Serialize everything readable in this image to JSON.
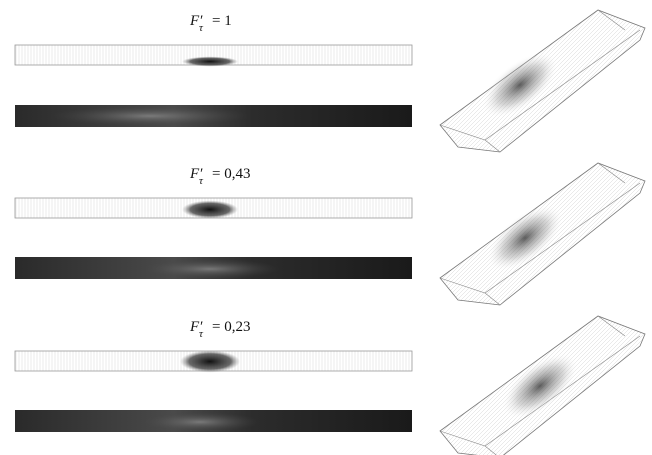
{
  "panels": [
    {
      "symbol": "F′",
      "subscript": "τ",
      "equation": "= 1"
    },
    {
      "symbol": "F′",
      "subscript": "τ",
      "equation": "= 0,43"
    },
    {
      "symbol": "F′",
      "subscript": "τ",
      "equation": "= 0,23"
    }
  ]
}
